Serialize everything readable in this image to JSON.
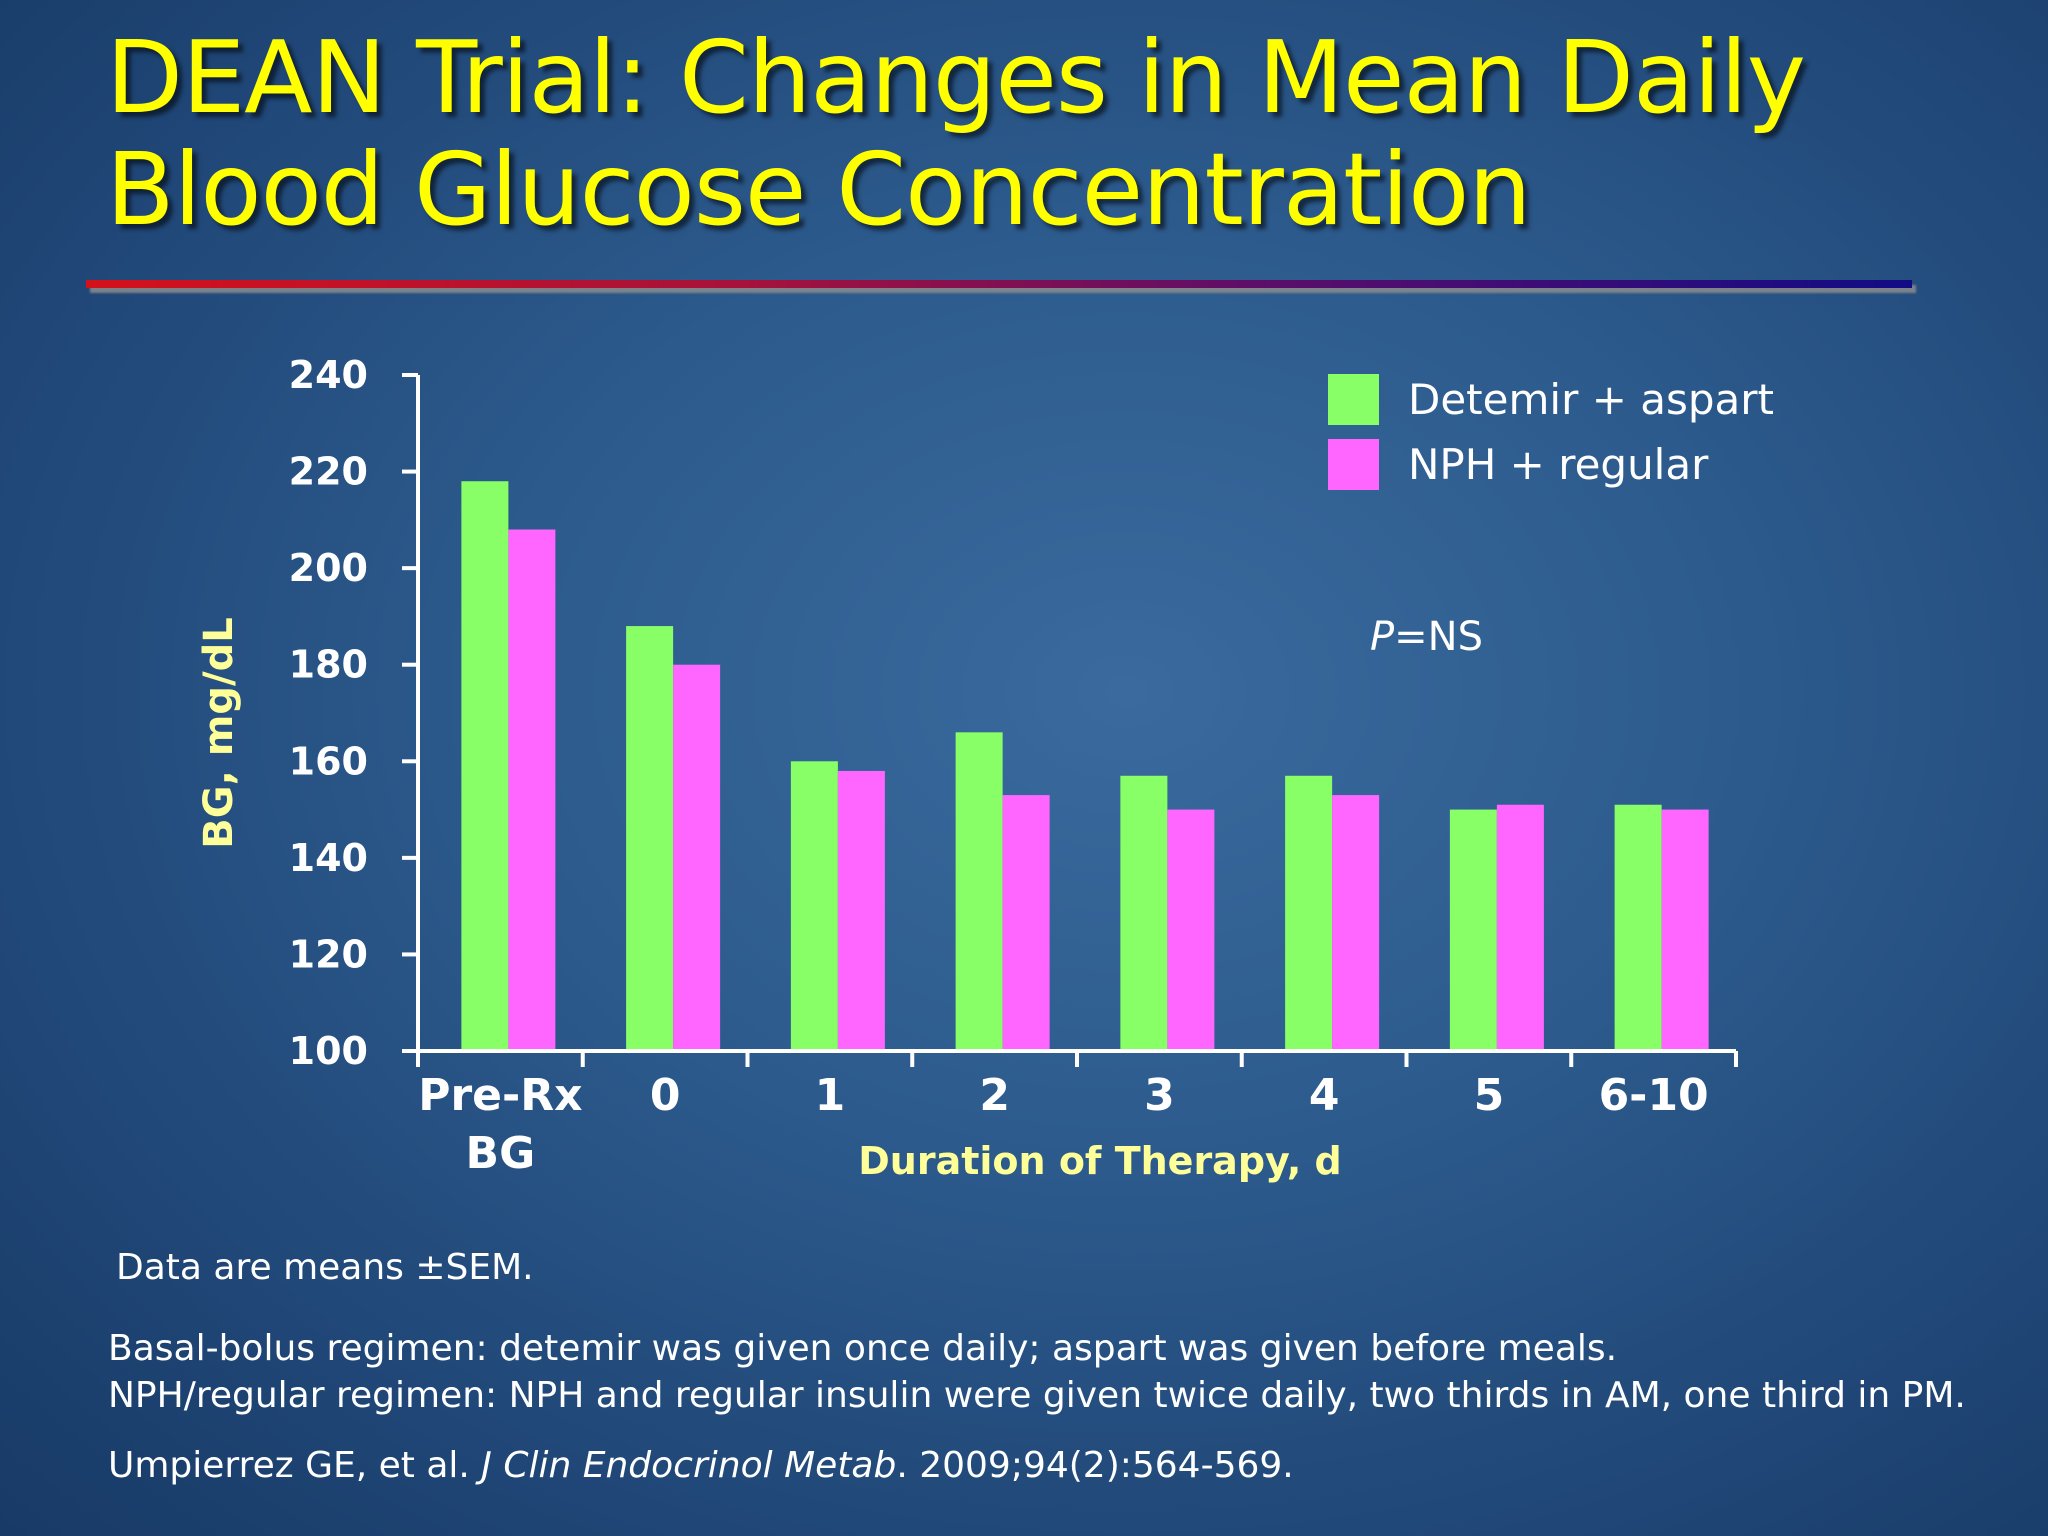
{
  "title": {
    "line1": "DEAN Trial: Changes in Mean Daily",
    "line2": "Blood Glucose Concentration"
  },
  "colors": {
    "title": "#ffff00",
    "series1": "#88ff66",
    "series2": "#ff66ff",
    "axis_title": "#ffff99"
  },
  "chart_data": {
    "type": "bar",
    "title": "",
    "xlabel": "Duration of Therapy, d",
    "ylabel": "BG, mg/dL",
    "ylim": [
      100,
      240
    ],
    "yticks": [
      100,
      120,
      140,
      160,
      180,
      200,
      220,
      240
    ],
    "categories": [
      "Pre-Rx BG",
      "0",
      "1",
      "2",
      "3",
      "4",
      "5",
      "6-10"
    ],
    "category_lines": [
      [
        "Pre-Rx",
        "BG"
      ],
      [
        "0"
      ],
      [
        "1"
      ],
      [
        "2"
      ],
      [
        "3"
      ],
      [
        "4"
      ],
      [
        "5"
      ],
      [
        "6-10"
      ]
    ],
    "series": [
      {
        "name": "Detemir + aspart",
        "color": "#88ff66",
        "values": [
          218,
          188,
          160,
          166,
          157,
          157,
          150,
          151
        ]
      },
      {
        "name": "NPH + regular",
        "color": "#ff66ff",
        "values": [
          208,
          180,
          158,
          153,
          150,
          153,
          151,
          150
        ]
      }
    ],
    "legend_position": "top-right",
    "annotation": {
      "prefix": "P",
      "suffix": "=NS"
    }
  },
  "notes": {
    "data_note": "Data are means ±SEM.",
    "regimen1": "Basal-bolus regimen: detemir was given once daily; aspart was given before meals.",
    "regimen2": "NPH/regular regimen: NPH and regular insulin were given twice daily, two thirds in AM, one third in PM.",
    "citation_authors": "Umpierrez GE, et al. ",
    "citation_journal": "J Clin Endocrinol Metab",
    "citation_rest": ". 2009;94(2):564-569."
  }
}
